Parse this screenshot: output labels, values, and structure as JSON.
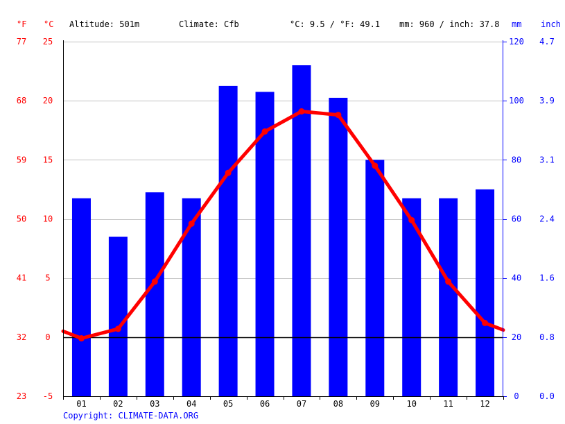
{
  "header": {
    "unit_f": "°F",
    "unit_c": "°C",
    "altitude": "Altitude: 501m",
    "climate": "Climate: Cfb",
    "temp_avg": "°C: 9.5 / °F: 49.1",
    "precip_avg": "mm: 960 / inch: 37.8",
    "unit_mm": "mm",
    "unit_inch": "inch"
  },
  "copyright": "Copyright: CLIMATE-DATA.ORG",
  "colors": {
    "temperature": "#ff0000",
    "precipitation": "#0000ff",
    "grid": "#c0c0c0",
    "zero_line": "#000000"
  },
  "chart_data": {
    "type": "bar",
    "categories": [
      "01",
      "02",
      "03",
      "04",
      "05",
      "06",
      "07",
      "08",
      "09",
      "10",
      "11",
      "12"
    ],
    "series": [
      {
        "name": "precipitation",
        "type": "bar",
        "unit": "mm",
        "values": [
          67,
          54,
          69,
          67,
          105,
          103,
          112,
          101,
          80,
          67,
          67,
          70
        ]
      },
      {
        "name": "temperature",
        "type": "line",
        "unit": "°C",
        "values": [
          -0.1,
          0.7,
          4.7,
          9.6,
          13.9,
          17.4,
          19.1,
          18.8,
          14.5,
          9.9,
          4.7,
          1.2
        ],
        "edge_start": 0.5,
        "edge_end": 0.6
      }
    ],
    "y_left_c": {
      "ticks": [
        25,
        20,
        15,
        10,
        5,
        0,
        -5
      ],
      "range": [
        -5,
        25
      ]
    },
    "y_left_f": {
      "ticks": [
        77,
        68,
        59,
        50,
        41,
        32,
        23
      ]
    },
    "y_right_mm": {
      "ticks": [
        120,
        100,
        80,
        60,
        40,
        20,
        0
      ],
      "range": [
        0,
        120
      ]
    },
    "y_right_inch": {
      "ticks": [
        "4.7",
        "3.9",
        "3.1",
        "2.4",
        "1.6",
        "0.8",
        "0.0"
      ]
    },
    "grid": true
  }
}
